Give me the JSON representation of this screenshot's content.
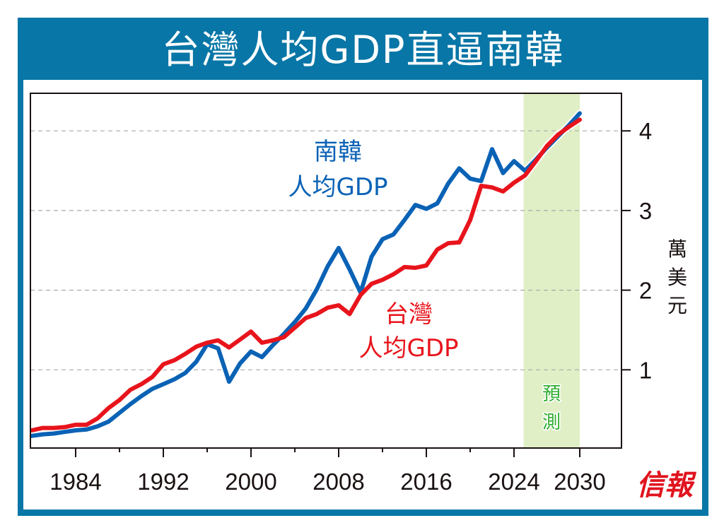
{
  "title": "台灣人均GDP直逼南韓",
  "source_logo": "信報",
  "colors": {
    "frame": "#0876a6",
    "taiwan": "#e8141c",
    "korea": "#0a62b5",
    "forecast_band": "#e1efc7",
    "forecast_text": "#2fae2f"
  },
  "chart_data": {
    "type": "line",
    "title": "台灣人均GDP直逼南韓",
    "xlabel": "",
    "ylabel": "萬美元",
    "x": [
      1980,
      1981,
      1982,
      1983,
      1984,
      1985,
      1986,
      1987,
      1988,
      1989,
      1990,
      1991,
      1992,
      1993,
      1994,
      1995,
      1996,
      1997,
      1998,
      1999,
      2000,
      2001,
      2002,
      2003,
      2004,
      2005,
      2006,
      2007,
      2008,
      2009,
      2010,
      2011,
      2012,
      2013,
      2014,
      2015,
      2016,
      2017,
      2018,
      2019,
      2020,
      2021,
      2022,
      2023,
      2024,
      2025,
      2026,
      2027,
      2028,
      2029,
      2030
    ],
    "series": [
      {
        "name": "南韓人均GDP",
        "label_lines": [
          "南韓",
          "人均GDP"
        ],
        "color": "#0a62b5",
        "values": [
          0.17,
          0.19,
          0.2,
          0.22,
          0.24,
          0.25,
          0.29,
          0.35,
          0.46,
          0.57,
          0.67,
          0.76,
          0.82,
          0.88,
          0.96,
          1.1,
          1.32,
          1.27,
          0.85,
          1.08,
          1.23,
          1.16,
          1.31,
          1.45,
          1.6,
          1.77,
          2.01,
          2.3,
          2.53,
          2.26,
          1.97,
          2.42,
          2.64,
          2.7,
          2.88,
          3.07,
          3.02,
          3.09,
          3.34,
          3.53,
          3.4,
          3.37,
          3.77,
          3.47,
          3.62,
          3.5,
          3.64,
          3.79,
          3.93,
          4.07,
          4.22
        ]
      },
      {
        "name": "台灣人均GDP",
        "label_lines": [
          "台灣",
          "人均GDP"
        ],
        "color": "#e8141c",
        "values": [
          0.24,
          0.27,
          0.27,
          0.28,
          0.31,
          0.31,
          0.39,
          0.52,
          0.62,
          0.75,
          0.82,
          0.91,
          1.07,
          1.12,
          1.2,
          1.29,
          1.34,
          1.37,
          1.28,
          1.38,
          1.48,
          1.34,
          1.37,
          1.41,
          1.53,
          1.65,
          1.7,
          1.78,
          1.81,
          1.7,
          1.94,
          2.08,
          2.13,
          2.2,
          2.29,
          2.28,
          2.31,
          2.51,
          2.59,
          2.6,
          2.88,
          3.31,
          3.29,
          3.24,
          3.35,
          3.44,
          3.62,
          3.81,
          3.95,
          4.05,
          4.14
        ]
      }
    ],
    "xlim": [
      1980,
      2030
    ],
    "ylim": [
      0,
      4.4
    ],
    "x_ticks_major": [
      1984,
      1992,
      2000,
      2008,
      2016,
      2024,
      2030
    ],
    "x_ticks_minor": [
      1988,
      1996,
      2004,
      2012,
      2020
    ],
    "x_tick_labels": [
      "1984",
      "1992",
      "2000",
      "2008",
      "2016",
      "2024",
      "2030"
    ],
    "y_ticks": [
      1,
      2,
      3,
      4
    ],
    "y_tick_labels": [
      "1",
      "2",
      "3",
      "4"
    ],
    "y_axis_side": "right",
    "grid": "horizontal-dashed",
    "forecast": {
      "label": "預測",
      "label_chars": [
        "預",
        "測"
      ],
      "from": 2025,
      "to": 2030
    }
  }
}
